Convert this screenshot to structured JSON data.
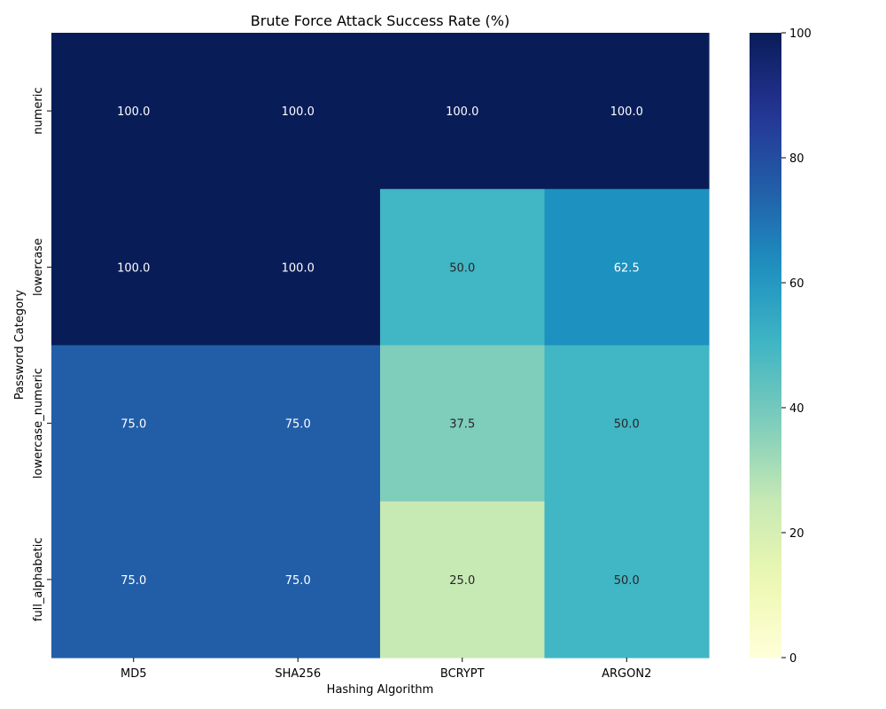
{
  "chart_data": {
    "type": "heatmap",
    "title": "Brute Force Attack Success Rate (%)",
    "xlabel": "Hashing Algorithm",
    "ylabel": "Password Category",
    "x_categories": [
      "MD5",
      "SHA256",
      "BCRYPT",
      "ARGON2"
    ],
    "y_categories": [
      "numeric",
      "lowercase",
      "lowercase_numeric",
      "full_alphabetic"
    ],
    "values": [
      [
        100.0,
        100.0,
        100.0,
        100.0
      ],
      [
        100.0,
        100.0,
        50.0,
        62.5
      ],
      [
        75.0,
        75.0,
        37.5,
        50.0
      ],
      [
        75.0,
        75.0,
        25.0,
        50.0
      ]
    ],
    "value_labels": [
      [
        "100.0",
        "100.0",
        "100.0",
        "100.0"
      ],
      [
        "100.0",
        "100.0",
        "50.0",
        "62.5"
      ],
      [
        "75.0",
        "75.0",
        "37.5",
        "50.0"
      ],
      [
        "75.0",
        "75.0",
        "25.0",
        "50.0"
      ]
    ],
    "colormap": "YlGnBu",
    "vmin": 0,
    "vmax": 100,
    "colorbar_ticks": [
      0,
      20,
      40,
      60,
      80,
      100
    ],
    "colorbar_tick_labels": [
      "0",
      "20",
      "40",
      "60",
      "80",
      "100"
    ]
  }
}
